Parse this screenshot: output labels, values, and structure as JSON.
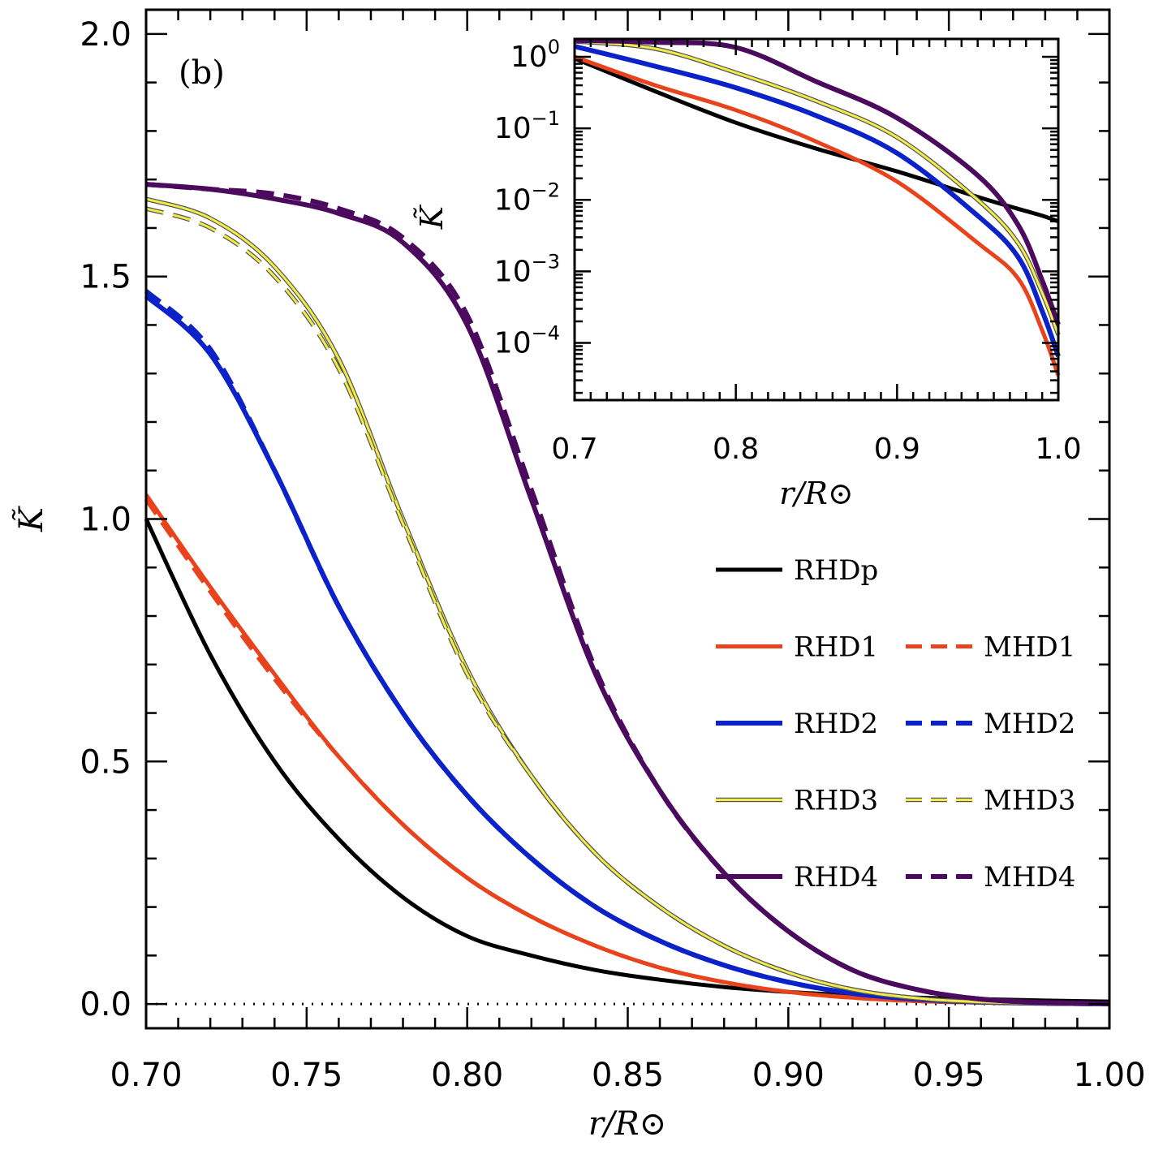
{
  "chart_data": {
    "type": "line",
    "panel_label": "(b)",
    "xlabel": "r/R⊙",
    "ylabel": "K̃",
    "xlim": [
      0.7,
      1.0
    ],
    "ylim": [
      -0.05,
      2.05
    ],
    "x_ticks": [
      "0.70",
      "0.75",
      "0.80",
      "0.85",
      "0.90",
      "0.95",
      "1.00"
    ],
    "y_ticks": [
      "0.0",
      "0.5",
      "1.0",
      "1.5",
      "2.0"
    ],
    "x": [
      0.7,
      0.72,
      0.74,
      0.76,
      0.78,
      0.8,
      0.82,
      0.84,
      0.86,
      0.88,
      0.9,
      0.92,
      0.94,
      0.96,
      0.98,
      1.0
    ],
    "series": [
      {
        "name": "RHDp",
        "color": "#000000",
        "style": "solid",
        "width": 5,
        "values": [
          1.0,
          0.72,
          0.5,
          0.34,
          0.22,
          0.14,
          0.1,
          0.07,
          0.05,
          0.035,
          0.025,
          0.018,
          0.013,
          0.01,
          0.007,
          0.005
        ]
      },
      {
        "name": "RHD1",
        "color": "#e8431c",
        "style": "solid",
        "width": 5,
        "values": [
          1.05,
          0.86,
          0.68,
          0.51,
          0.37,
          0.26,
          0.18,
          0.12,
          0.075,
          0.045,
          0.025,
          0.013,
          0.006,
          0.003,
          0.0015,
          0.0002
        ]
      },
      {
        "name": "MHD1",
        "color": "#e8431c",
        "style": "dashed",
        "width": 5,
        "values": [
          1.04,
          0.85,
          0.67,
          0.51,
          0.37,
          0.26,
          0.18,
          0.12,
          0.075,
          0.045,
          0.025,
          0.013,
          0.006,
          0.003,
          0.0015,
          0.0002
        ]
      },
      {
        "name": "RHD2",
        "color": "#0b22c8",
        "style": "solid",
        "width": 6,
        "values": [
          1.46,
          1.34,
          1.1,
          0.82,
          0.6,
          0.43,
          0.3,
          0.2,
          0.13,
          0.08,
          0.045,
          0.022,
          0.01,
          0.004,
          0.0015,
          0.0003
        ]
      },
      {
        "name": "MHD2",
        "color": "#0b22c8",
        "style": "dashed",
        "width": 6,
        "values": [
          1.47,
          1.35,
          1.1,
          0.82,
          0.6,
          0.43,
          0.3,
          0.2,
          0.13,
          0.08,
          0.045,
          0.022,
          0.01,
          0.004,
          0.0015,
          0.0003
        ]
      },
      {
        "name": "RHD3",
        "color": "#f2ec4a",
        "style": "solid",
        "width": 3,
        "values": [
          1.66,
          1.62,
          1.52,
          1.33,
          1.0,
          0.69,
          0.47,
          0.31,
          0.2,
          0.12,
          0.065,
          0.03,
          0.012,
          0.004,
          0.0015,
          0.0005
        ]
      },
      {
        "name": "MHD3",
        "color": "#f2ec4a",
        "style": "dashed",
        "width": 3,
        "values": [
          1.64,
          1.6,
          1.5,
          1.31,
          0.99,
          0.68,
          0.47,
          0.31,
          0.2,
          0.12,
          0.065,
          0.03,
          0.012,
          0.004,
          0.0015,
          0.0005
        ]
      },
      {
        "name": "RHD4",
        "color": "#4b0a5e",
        "style": "solid",
        "width": 6,
        "values": [
          1.69,
          1.68,
          1.66,
          1.63,
          1.57,
          1.4,
          1.04,
          0.68,
          0.44,
          0.27,
          0.15,
          0.07,
          0.03,
          0.01,
          0.003,
          0.0008
        ]
      },
      {
        "name": "MHD4",
        "color": "#4b0a5e",
        "style": "dashed",
        "width": 6,
        "values": [
          1.69,
          1.68,
          1.67,
          1.64,
          1.58,
          1.42,
          1.06,
          0.69,
          0.44,
          0.27,
          0.15,
          0.07,
          0.03,
          0.01,
          0.003,
          0.0008
        ]
      }
    ],
    "legend": {
      "placement": "lower-right",
      "rows": [
        {
          "solid": "RHDp",
          "dashed": null
        },
        {
          "solid": "RHD1",
          "dashed": "MHD1"
        },
        {
          "solid": "RHD2",
          "dashed": "MHD2"
        },
        {
          "solid": "RHD3",
          "dashed": "MHD3"
        },
        {
          "solid": "RHD4",
          "dashed": "MHD4"
        }
      ]
    },
    "inset": {
      "scale": "log",
      "xlabel": "r/R⊙",
      "ylabel": "K̃",
      "xlim": [
        0.7,
        1.0
      ],
      "ylim_log10": [
        -4.8,
        0.25
      ],
      "x_ticks": [
        "0.7",
        "0.8",
        "0.9",
        "1.0"
      ],
      "y_ticks": [
        {
          "base": "10",
          "exp": "0",
          "log10": 0
        },
        {
          "base": "10",
          "exp": "−1",
          "log10": -1
        },
        {
          "base": "10",
          "exp": "−2",
          "log10": -2
        },
        {
          "base": "10",
          "exp": "−3",
          "log10": -3
        },
        {
          "base": "10",
          "exp": "−4",
          "log10": -4
        }
      ],
      "x": [
        0.7,
        0.75,
        0.8,
        0.85,
        0.9,
        0.95,
        0.975,
        0.99,
        1.0
      ],
      "series": [
        {
          "name": "RHDp",
          "color": "#000000",
          "width": 5,
          "values": [
            0.95,
            0.33,
            0.12,
            0.052,
            0.025,
            0.011,
            0.0075,
            0.006,
            0.005
          ]
        },
        {
          "name": "RHD1",
          "color": "#e8431c",
          "width": 5,
          "values": [
            1.0,
            0.4,
            0.18,
            0.065,
            0.018,
            0.0025,
            0.0008,
            0.00015,
            3.5e-05
          ]
        },
        {
          "name": "RHD2",
          "color": "#0b22c8",
          "width": 6,
          "values": [
            1.4,
            0.74,
            0.37,
            0.15,
            0.045,
            0.006,
            0.0016,
            0.00028,
            6.5e-05
          ]
        },
        {
          "name": "RHD3",
          "color": "#f2ec4a",
          "width": 3,
          "values": [
            1.65,
            1.3,
            0.6,
            0.24,
            0.075,
            0.01,
            0.0025,
            0.0005,
            0.00013
          ]
        },
        {
          "name": "RHD4",
          "color": "#4b0a5e",
          "width": 6,
          "values": [
            1.7,
            1.6,
            1.35,
            0.45,
            0.14,
            0.022,
            0.0045,
            0.00075,
            0.00018
          ]
        }
      ]
    }
  }
}
